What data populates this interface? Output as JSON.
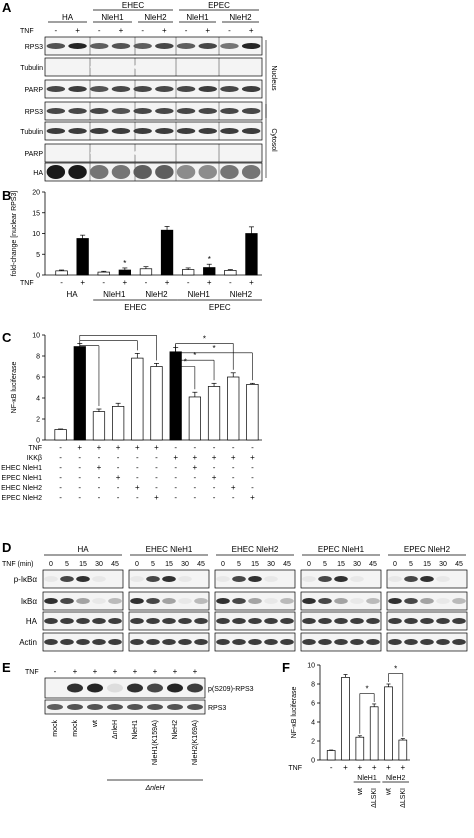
{
  "panels": {
    "A": {
      "label": "A",
      "tnf_label": "TNF",
      "lane_signs": [
        "-",
        "+",
        "-",
        "+",
        "-",
        "+",
        "-",
        "+",
        "-",
        "+"
      ],
      "groups": [
        {
          "name": "HA",
          "lanes": 2
        },
        {
          "name": "NleH1",
          "lanes": 2
        },
        {
          "name": "NleH2",
          "lanes": 2
        },
        {
          "name": "NleH1",
          "lanes": 2
        },
        {
          "name": "NleH2",
          "lanes": 2
        }
      ],
      "supergroups": [
        {
          "name": "EHEC",
          "span": [
            1,
            2
          ]
        },
        {
          "name": "EPEC",
          "span": [
            3,
            4
          ]
        }
      ],
      "blots": [
        {
          "name": "RPS3",
          "intensity": [
            0.75,
            0.95,
            0.7,
            0.75,
            0.7,
            0.8,
            0.7,
            0.8,
            0.6,
            0.95
          ]
        },
        {
          "name": "Tubulin",
          "intensity": [
            0.05,
            0.05,
            0.05,
            0.05,
            0.05,
            0.05,
            0.05,
            0.05,
            0.05,
            0.05
          ]
        },
        {
          "name": "PARP",
          "intensity": [
            0.8,
            0.85,
            0.75,
            0.8,
            0.8,
            0.8,
            0.8,
            0.85,
            0.8,
            0.85
          ]
        },
        {
          "name": "RPS3",
          "intensity": [
            0.8,
            0.8,
            0.8,
            0.75,
            0.8,
            0.8,
            0.8,
            0.8,
            0.8,
            0.8
          ]
        },
        {
          "name": "Tubulin",
          "intensity": [
            0.85,
            0.85,
            0.85,
            0.85,
            0.85,
            0.85,
            0.85,
            0.85,
            0.85,
            0.85
          ]
        },
        {
          "name": "PARP",
          "intensity": [
            0.05,
            0.05,
            0.05,
            0.05,
            0.05,
            0.05,
            0.05,
            0.05,
            0.05,
            0.05
          ]
        },
        {
          "name": "HA",
          "intensity": [
            1.0,
            1.0,
            0.6,
            0.6,
            0.7,
            0.7,
            0.5,
            0.5,
            0.6,
            0.6
          ]
        }
      ],
      "fractions": [
        "Nucleus",
        "Cytosol"
      ]
    },
    "B": {
      "label": "B",
      "chart_data": {
        "type": "bar",
        "ylabel": "fold-change [nuclear RPS3]",
        "ylim": [
          0,
          20
        ],
        "yticks": [
          0,
          5,
          10,
          15,
          20
        ],
        "x_row_label": "TNF",
        "tnf": [
          "-",
          "+",
          "-",
          "+",
          "-",
          "+",
          "-",
          "+",
          "-",
          "+"
        ],
        "values": [
          1.0,
          8.8,
          0.7,
          1.2,
          1.5,
          10.8,
          1.3,
          1.8,
          1.1,
          10.0
        ],
        "errors": [
          0.2,
          0.8,
          0.2,
          0.5,
          0.5,
          0.9,
          0.4,
          0.8,
          0.2,
          1.6
        ],
        "fills": [
          "open",
          "filled",
          "open",
          "filled",
          "open",
          "filled",
          "open",
          "filled",
          "open",
          "filled"
        ],
        "stars": [
          3,
          7
        ],
        "star_symbol": "*",
        "group_labels": [
          "HA",
          "NleH1",
          "NleH2",
          "NleH1",
          "NleH2"
        ],
        "super_labels": [
          "EHEC",
          "EPEC"
        ]
      }
    },
    "C": {
      "label": "C",
      "chart_data": {
        "type": "bar",
        "ylabel": "NF-κB luciferase",
        "ylim": [
          0,
          10
        ],
        "yticks": [
          0,
          2,
          4,
          6,
          8,
          10
        ],
        "values": [
          1.0,
          8.9,
          2.7,
          3.2,
          7.8,
          7.0,
          8.4,
          4.1,
          5.1,
          6.0,
          5.3
        ],
        "errors": [
          0.05,
          0.3,
          0.25,
          0.3,
          0.45,
          0.3,
          0.4,
          0.45,
          0.3,
          0.4,
          0.1
        ],
        "fills": [
          "open",
          "filled",
          "open",
          "open",
          "open",
          "open",
          "filled",
          "open",
          "open",
          "open",
          "open"
        ],
        "row_labels": [
          "TNF",
          "IKKβ",
          "EHEC NleH1",
          "EPEC NleH1",
          "EHEC NleH2",
          "EPEC NleH2"
        ],
        "matrix": [
          [
            "-",
            "+",
            "+",
            "+",
            "+",
            "+",
            "-",
            "-",
            "-",
            "-",
            "-"
          ],
          [
            "-",
            "-",
            "-",
            "-",
            "-",
            "-",
            "+",
            "+",
            "+",
            "+",
            "+"
          ],
          [
            "-",
            "-",
            "+",
            "-",
            "-",
            "-",
            "-",
            "+",
            "-",
            "-",
            "-"
          ],
          [
            "-",
            "-",
            "-",
            "+",
            "-",
            "-",
            "-",
            "-",
            "+",
            "-",
            "-"
          ],
          [
            "-",
            "-",
            "-",
            "-",
            "+",
            "-",
            "-",
            "-",
            "-",
            "+",
            "-"
          ],
          [
            "-",
            "-",
            "-",
            "-",
            "-",
            "+",
            "-",
            "-",
            "-",
            "-",
            "+"
          ]
        ],
        "star_symbol": "*"
      }
    },
    "D": {
      "label": "D",
      "time_label": "TNF (min)",
      "times": [
        "0",
        "5",
        "15",
        "30",
        "45"
      ],
      "groups": [
        "HA",
        "EHEC NleH1",
        "EHEC NleH2",
        "EPEC NleH1",
        "EPEC NleH2"
      ],
      "blots": [
        {
          "name": "p-IκBα",
          "intensity": [
            0.1,
            0.8,
            0.9,
            0.1,
            0.05
          ]
        },
        {
          "name": "IκBα",
          "intensity": [
            0.9,
            0.8,
            0.4,
            0.1,
            0.3
          ]
        },
        {
          "name": "HA",
          "intensity": [
            0.85,
            0.85,
            0.85,
            0.85,
            0.85
          ]
        },
        {
          "name": "Actin",
          "intensity": [
            0.85,
            0.85,
            0.85,
            0.85,
            0.85
          ]
        }
      ]
    },
    "E": {
      "label": "E",
      "tnf_label": "TNF",
      "tnf": [
        "-",
        "+",
        "+",
        "+",
        "+",
        "+",
        "+",
        "+"
      ],
      "lanes": [
        "mock",
        "mock",
        "wt",
        "ΔnleH",
        "NleH1",
        "NleH1(K159A)",
        "NleH2",
        "NleH2(K169A)"
      ],
      "delta_group": "ΔnleH",
      "blots": [
        {
          "name": "p(S209)-RPS3",
          "intensity": [
            0.05,
            0.9,
            0.95,
            0.15,
            0.9,
            0.8,
            0.95,
            0.85
          ]
        },
        {
          "name": "RPS3",
          "intensity": [
            0.7,
            0.75,
            0.75,
            0.75,
            0.75,
            0.75,
            0.75,
            0.75
          ]
        }
      ]
    },
    "F": {
      "label": "F",
      "chart_data": {
        "type": "bar",
        "ylabel": "NF-κB luciferase",
        "ylim": [
          0,
          10
        ],
        "yticks": [
          0,
          2,
          4,
          6,
          8,
          10
        ],
        "values": [
          1.0,
          8.7,
          2.4,
          5.6,
          7.7,
          2.1
        ],
        "errors": [
          0.05,
          0.3,
          0.15,
          0.3,
          0.3,
          0.15
        ],
        "tnf": [
          "-",
          "+",
          "+",
          "+",
          "+",
          "+"
        ],
        "x_row_label": "TNF",
        "sublabels": [
          "",
          "",
          "wt",
          "ΔLSKI",
          "wt",
          "ΔLSKI"
        ],
        "group_labels": [
          "NleH1",
          "NleH2"
        ],
        "star_symbol": "*"
      }
    }
  }
}
